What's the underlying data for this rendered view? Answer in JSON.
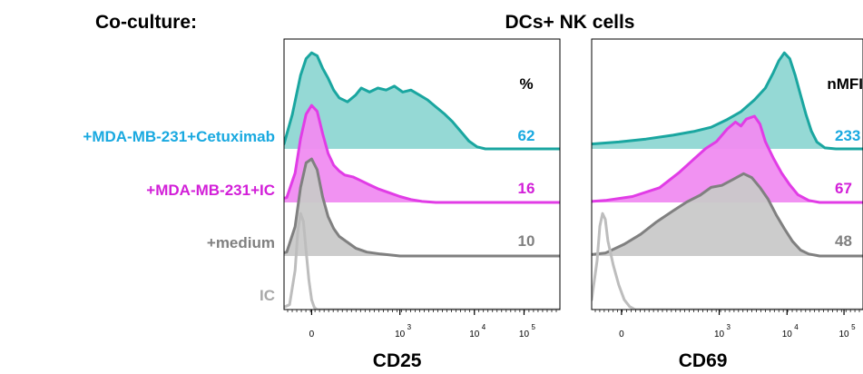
{
  "header": {
    "left": "Co-culture:",
    "center": "DCs+ NK cells"
  },
  "colors": {
    "cetuximab": "#1aa6a0",
    "cetuximab_label": "#19a9e0",
    "ic_treat": "#e13ce6",
    "ic_treat_label": "#d21fd8",
    "medium": "#808080",
    "ic": "#bdbdbd",
    "cd69_overlap": "#8d6fd0"
  },
  "row_labels": [
    {
      "text": "+MDA-MB-231+Cetuximab",
      "color": "#19a9e0"
    },
    {
      "text": "+MDA-MB-231+IC",
      "color": "#d21fd8"
    },
    {
      "text": "+medium",
      "color": "#808080"
    },
    {
      "text": "IC",
      "color": "#a8a8a8"
    }
  ],
  "chart_data": [
    {
      "type": "area",
      "xlabel": "CD25",
      "x_scale": "biexponential",
      "ticks": [
        {
          "label": "0",
          "exp": ""
        },
        {
          "label": "10",
          "exp": "3"
        },
        {
          "label": "10",
          "exp": "4"
        },
        {
          "label": "10",
          "exp": "5"
        }
      ],
      "stat_header": "%",
      "stats": [
        "62",
        "16",
        "10"
      ],
      "series": [
        {
          "fill": "#8fd7d3",
          "stroke": "#1aa6a0",
          "points": [
            [
              -0.05,
              0
            ],
            [
              0,
              0.05
            ],
            [
              0.03,
              0.35
            ],
            [
              0.06,
              0.75
            ],
            [
              0.08,
              0.92
            ],
            [
              0.1,
              0.98
            ],
            [
              0.12,
              0.95
            ],
            [
              0.14,
              0.82
            ],
            [
              0.16,
              0.72
            ],
            [
              0.18,
              0.6
            ],
            [
              0.2,
              0.52
            ],
            [
              0.23,
              0.48
            ],
            [
              0.26,
              0.55
            ],
            [
              0.28,
              0.62
            ],
            [
              0.31,
              0.58
            ],
            [
              0.34,
              0.62
            ],
            [
              0.37,
              0.6
            ],
            [
              0.4,
              0.64
            ],
            [
              0.43,
              0.58
            ],
            [
              0.46,
              0.6
            ],
            [
              0.49,
              0.55
            ],
            [
              0.52,
              0.5
            ],
            [
              0.55,
              0.43
            ],
            [
              0.58,
              0.36
            ],
            [
              0.61,
              0.28
            ],
            [
              0.64,
              0.18
            ],
            [
              0.67,
              0.08
            ],
            [
              0.7,
              0.02
            ],
            [
              0.73,
              0
            ]
          ]
        },
        {
          "fill": "#f08cf1",
          "stroke": "#e13ce6",
          "points": [
            [
              -0.05,
              0
            ],
            [
              0.01,
              0.05
            ],
            [
              0.04,
              0.3
            ],
            [
              0.06,
              0.65
            ],
            [
              0.08,
              0.9
            ],
            [
              0.1,
              0.99
            ],
            [
              0.12,
              0.93
            ],
            [
              0.14,
              0.7
            ],
            [
              0.16,
              0.5
            ],
            [
              0.18,
              0.38
            ],
            [
              0.2,
              0.32
            ],
            [
              0.22,
              0.28
            ],
            [
              0.25,
              0.26
            ],
            [
              0.28,
              0.22
            ],
            [
              0.31,
              0.18
            ],
            [
              0.34,
              0.14
            ],
            [
              0.38,
              0.1
            ],
            [
              0.42,
              0.06
            ],
            [
              0.46,
              0.03
            ],
            [
              0.5,
              0.01
            ],
            [
              0.55,
              0
            ]
          ]
        },
        {
          "fill": "#c9c9c9",
          "stroke": "#808080",
          "points": [
            [
              -0.05,
              0
            ],
            [
              0.01,
              0.04
            ],
            [
              0.04,
              0.3
            ],
            [
              0.06,
              0.7
            ],
            [
              0.08,
              0.95
            ],
            [
              0.1,
              0.99
            ],
            [
              0.12,
              0.88
            ],
            [
              0.14,
              0.6
            ],
            [
              0.16,
              0.4
            ],
            [
              0.18,
              0.28
            ],
            [
              0.2,
              0.2
            ],
            [
              0.23,
              0.14
            ],
            [
              0.26,
              0.08
            ],
            [
              0.3,
              0.04
            ],
            [
              0.35,
              0.02
            ],
            [
              0.42,
              0
            ]
          ]
        },
        {
          "fill": "none",
          "stroke": "#bdbdbd",
          "points": [
            [
              -0.02,
              0
            ],
            [
              0.02,
              0.05
            ],
            [
              0.04,
              0.4
            ],
            [
              0.05,
              0.8
            ],
            [
              0.06,
              0.98
            ],
            [
              0.07,
              0.9
            ],
            [
              0.08,
              0.6
            ],
            [
              0.09,
              0.3
            ],
            [
              0.1,
              0.1
            ],
            [
              0.11,
              0.02
            ],
            [
              0.12,
              0
            ]
          ]
        }
      ]
    },
    {
      "type": "area",
      "xlabel": "CD69",
      "x_scale": "biexponential",
      "ticks": [
        {
          "label": "0",
          "exp": ""
        },
        {
          "label": "10",
          "exp": "3"
        },
        {
          "label": "10",
          "exp": "4"
        },
        {
          "label": "10",
          "exp": "5"
        }
      ],
      "stat_header": "nMFI",
      "stats": [
        "233",
        "67",
        "48"
      ],
      "series": [
        {
          "fill": "#8fd7d3",
          "stroke": "#1aa6a0",
          "points": [
            [
              -0.05,
              0
            ],
            [
              0,
              0.05
            ],
            [
              0.1,
              0.07
            ],
            [
              0.2,
              0.1
            ],
            [
              0.3,
              0.14
            ],
            [
              0.38,
              0.18
            ],
            [
              0.44,
              0.22
            ],
            [
              0.5,
              0.3
            ],
            [
              0.55,
              0.38
            ],
            [
              0.6,
              0.5
            ],
            [
              0.64,
              0.62
            ],
            [
              0.67,
              0.78
            ],
            [
              0.69,
              0.9
            ],
            [
              0.71,
              0.98
            ],
            [
              0.73,
              0.92
            ],
            [
              0.75,
              0.75
            ],
            [
              0.77,
              0.55
            ],
            [
              0.79,
              0.35
            ],
            [
              0.81,
              0.18
            ],
            [
              0.83,
              0.07
            ],
            [
              0.86,
              0.01
            ],
            [
              0.9,
              0
            ]
          ]
        },
        {
          "fill": "#f08cf1",
          "stroke": "#e13ce6",
          "points": [
            [
              -0.05,
              0
            ],
            [
              0.05,
              0.02
            ],
            [
              0.15,
              0.06
            ],
            [
              0.25,
              0.15
            ],
            [
              0.32,
              0.3
            ],
            [
              0.38,
              0.45
            ],
            [
              0.42,
              0.55
            ],
            [
              0.46,
              0.62
            ],
            [
              0.5,
              0.75
            ],
            [
              0.53,
              0.82
            ],
            [
              0.55,
              0.78
            ],
            [
              0.57,
              0.85
            ],
            [
              0.6,
              0.88
            ],
            [
              0.62,
              0.8
            ],
            [
              0.64,
              0.62
            ],
            [
              0.67,
              0.45
            ],
            [
              0.7,
              0.3
            ],
            [
              0.73,
              0.18
            ],
            [
              0.76,
              0.08
            ],
            [
              0.8,
              0.02
            ],
            [
              0.84,
              0
            ]
          ]
        },
        {
          "fill": "#c9c9c9",
          "stroke": "#808080",
          "points": [
            [
              -0.05,
              0
            ],
            [
              0.05,
              0.03
            ],
            [
              0.12,
              0.12
            ],
            [
              0.18,
              0.22
            ],
            [
              0.24,
              0.35
            ],
            [
              0.3,
              0.46
            ],
            [
              0.35,
              0.55
            ],
            [
              0.4,
              0.62
            ],
            [
              0.44,
              0.7
            ],
            [
              0.48,
              0.72
            ],
            [
              0.52,
              0.78
            ],
            [
              0.56,
              0.84
            ],
            [
              0.59,
              0.8
            ],
            [
              0.62,
              0.7
            ],
            [
              0.65,
              0.58
            ],
            [
              0.68,
              0.42
            ],
            [
              0.71,
              0.28
            ],
            [
              0.74,
              0.15
            ],
            [
              0.77,
              0.06
            ],
            [
              0.8,
              0.02
            ],
            [
              0.84,
              0
            ]
          ]
        },
        {
          "fill": "none",
          "stroke": "#bdbdbd",
          "points": [
            [
              -0.04,
              0
            ],
            [
              0.0,
              0.1
            ],
            [
              0.02,
              0.5
            ],
            [
              0.03,
              0.85
            ],
            [
              0.04,
              0.98
            ],
            [
              0.05,
              0.92
            ],
            [
              0.06,
              0.7
            ],
            [
              0.08,
              0.45
            ],
            [
              0.1,
              0.25
            ],
            [
              0.12,
              0.1
            ],
            [
              0.14,
              0.03
            ],
            [
              0.16,
              0
            ]
          ]
        }
      ]
    }
  ]
}
